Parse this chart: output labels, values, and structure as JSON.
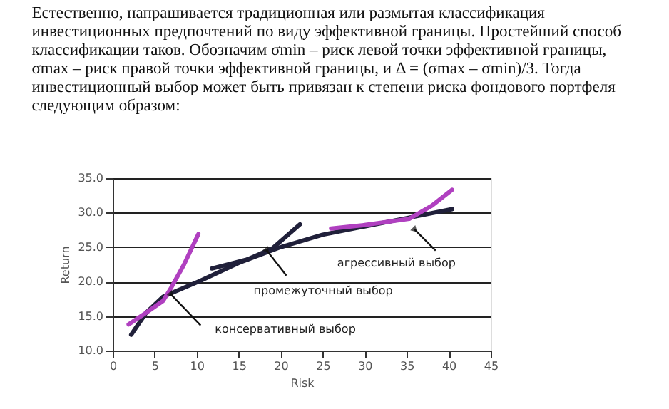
{
  "chart_data": {
    "type": "line",
    "xlabel": "Risk",
    "ylabel": "Return",
    "xlim": [
      0,
      45
    ],
    "xticks": [
      0,
      5,
      10,
      15,
      20,
      25,
      30,
      35,
      40,
      45
    ],
    "ylim": [
      10,
      35
    ],
    "yticks": [
      {
        "value": 10,
        "label": "10.0"
      },
      {
        "value": 15,
        "label": "15.0"
      },
      {
        "value": 20,
        "label": "20.0"
      },
      {
        "value": 25,
        "label": "25.0"
      },
      {
        "value": 30,
        "label": "30.0"
      },
      {
        "value": 35,
        "label": "35.0"
      }
    ],
    "grid": "y",
    "line_style": "solid",
    "marker": "none",
    "series": [
      {
        "color": "#20203a",
        "x": [
          2.2,
          4,
          6,
          7.5,
          10.4,
          15,
          20,
          25,
          30,
          35,
          40.4
        ],
        "values": [
          12.3,
          15.5,
          17.8,
          18.6,
          20.1,
          22.7,
          25,
          26.8,
          28,
          29.2,
          30.5
        ]
      },
      {
        "color": "#b040c0",
        "x": [
          1.9,
          4,
          6,
          7,
          8.5,
          10.2
        ],
        "values": [
          13.8,
          15.5,
          17.2,
          19.2,
          22.5,
          26.9
        ]
      },
      {
        "color": "#20203a",
        "x": [
          11.8,
          16,
          19,
          22.3
        ],
        "values": [
          21.9,
          23.2,
          24.8,
          28.3
        ]
      },
      {
        "color": "#b040c0",
        "x": [
          26,
          30,
          35.3,
          38,
          40.4
        ],
        "values": [
          27.7,
          28.2,
          29.1,
          31,
          33.3
        ]
      }
    ],
    "annotations": [
      "Естественно, напрашивается традиционная или размытая классификация инвестиционных предпочтений по виду эффективной границы. Простейший способ классификации таков. Обозначим σmin – риск левой точки эффективной границы, σmax – риск правой точки эффективной границы, и Δ = (σmax – σmin)/3. Тогда инвестиционный выбор может быть привязан к степени риска фондового портфеля следующим образом:",
      {
        "text": "консервативный выбор",
        "x": 6.9,
        "y": 18.2
      },
      {
        "text": "промежуточный выбор",
        "x": 18.3,
        "y": 24.6
      },
      {
        "text": "агрессивный выбор",
        "x": 35.9,
        "y": 27.6
      }
    ]
  }
}
